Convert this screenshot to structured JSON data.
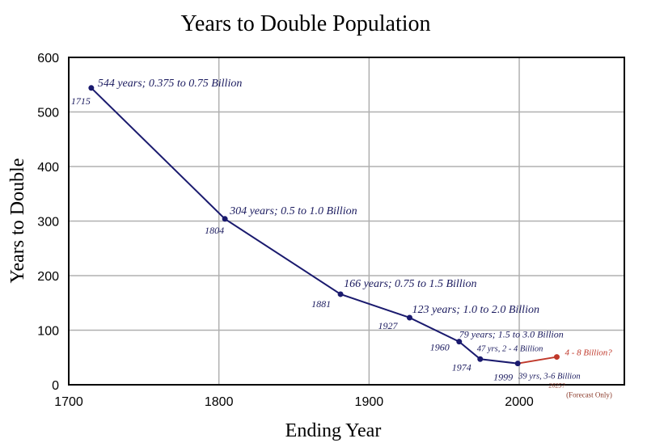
{
  "chart_data": {
    "type": "line",
    "title": "Years to Double Population",
    "xlabel": "Ending Year",
    "ylabel": "Years to Double",
    "xlim": [
      1700,
      2070
    ],
    "ylim": [
      0,
      600
    ],
    "x_ticks": [
      "1700",
      "1800",
      "1900",
      "2000"
    ],
    "y_ticks": [
      "0",
      "100",
      "200",
      "300",
      "400",
      "500",
      "600"
    ],
    "grid": true,
    "colors": {
      "series": "#1a1a6e",
      "forecast": "#c0392b"
    },
    "series": [
      {
        "points": [
          {
            "x": 1715,
            "y": 544,
            "year_label": "1715",
            "annotation": "544 years; 0.375 to 0.75 Billion"
          },
          {
            "x": 1804,
            "y": 304,
            "year_label": "1804",
            "annotation": "304 years; 0.5 to 1.0 Billion"
          },
          {
            "x": 1881,
            "y": 166,
            "year_label": "1881",
            "annotation": "166 years; 0.75 to 1.5 Billion"
          },
          {
            "x": 1927,
            "y": 123,
            "year_label": "1927",
            "annotation": "123 years; 1.0 to 2.0 Billion"
          },
          {
            "x": 1960,
            "y": 79,
            "year_label": "1960",
            "annotation": "79 years; 1.5 to 3.0 Billion"
          },
          {
            "x": 1974,
            "y": 47,
            "year_label": "1974",
            "annotation": "47 yrs, 2 - 4 Billion"
          },
          {
            "x": 1999,
            "y": 39,
            "year_label": "1999",
            "annotation": "39 yrs, 3-6 Billion"
          }
        ]
      },
      {
        "forecast": true,
        "points": [
          {
            "x": 1999,
            "y": 39
          },
          {
            "x": 2025,
            "y": 51,
            "annotation": "4 - 8 Billion?"
          }
        ]
      }
    ],
    "forecast_notes": [
      "2025?",
      "(Forecast Only)"
    ]
  }
}
